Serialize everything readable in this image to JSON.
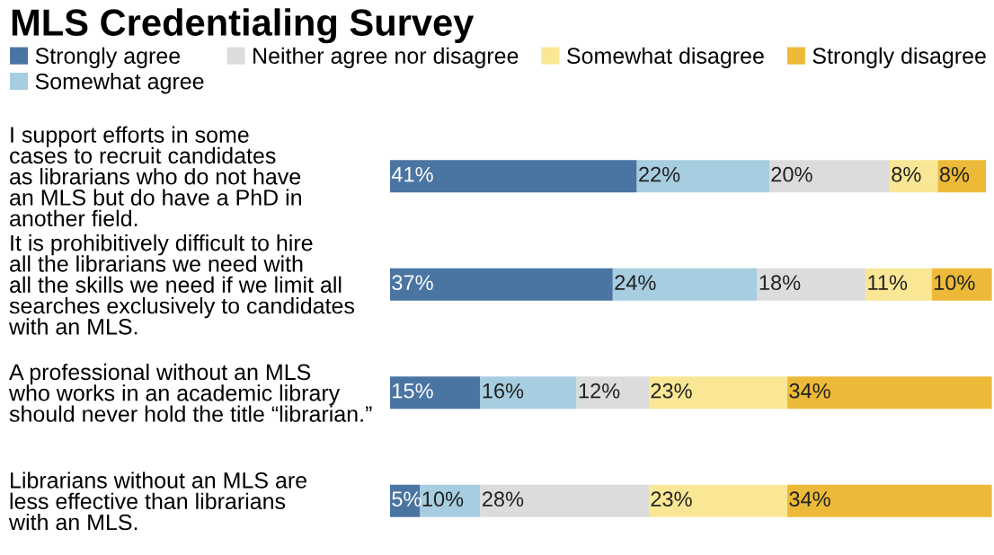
{
  "chart_data": {
    "type": "bar",
    "orientation": "horizontal",
    "stacked": true,
    "title": "MLS Credentialing Survey",
    "categories": [
      "I support efforts in some\ncases to recruit candidates\nas librarians who do not have\nan MLS but do have a PhD in\nanother field.",
      "It is prohibitively difficult to hire\nall the librarians we need with\nall the skills we need if we limit all\nsearches exclusively to candidates\nwith an MLS.",
      "A professional without an MLS\nwho works in an academic library\nshould never hold the title “librarian.”",
      "Librarians without an MLS are\nless effective than librarians\nwith an MLS."
    ],
    "series": [
      {
        "name": "Strongly agree",
        "color": "#4a74a2",
        "values": [
          41,
          37,
          15,
          5
        ],
        "value_labels": [
          "41%",
          "37%",
          "15%",
          "5%"
        ]
      },
      {
        "name": "Somewhat agree",
        "color": "#a6cde0",
        "values": [
          22,
          24,
          16,
          10
        ],
        "value_labels": [
          "22%",
          "24%",
          "16%",
          "10%"
        ]
      },
      {
        "name": "Neither agree nor disagree",
        "color": "#dcdcdc",
        "values": [
          20,
          18,
          12,
          28
        ],
        "value_labels": [
          "20%",
          "18%",
          "12%",
          "28%"
        ]
      },
      {
        "name": "Somewhat disagree",
        "color": "#f9e796",
        "values": [
          8,
          11,
          23,
          23
        ],
        "value_labels": [
          "8%",
          "11%",
          "23%",
          "23%"
        ]
      },
      {
        "name": "Strongly disagree",
        "color": "#ecba38",
        "values": [
          8,
          10,
          34,
          34
        ],
        "value_labels": [
          "8%",
          "10%",
          "34%",
          "34%"
        ]
      }
    ],
    "xlim": [
      0,
      100
    ],
    "tick_labels": "y",
    "legend": "top",
    "grid": false
  }
}
